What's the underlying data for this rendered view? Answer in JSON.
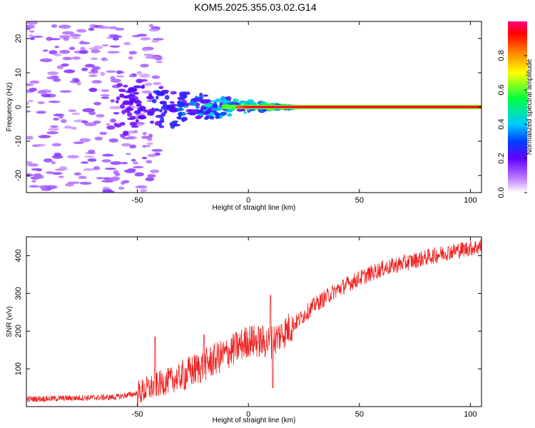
{
  "title": "KOM5.2025.355.03.02.G14",
  "colors": {
    "snr_line": "#ee2222",
    "frame": "#000000"
  },
  "chart_data": [
    {
      "type": "heatmap",
      "name": "spectrogram",
      "xlabel": "Height of straight line (km)",
      "ylabel": "Frequency (Hz)",
      "xlim": [
        -100,
        105
      ],
      "ylim": [
        -25,
        25
      ],
      "xticks": [
        -50,
        0,
        50,
        100
      ],
      "yticks": [
        -20,
        -10,
        0,
        10,
        20
      ],
      "tonal_band": {
        "frequency": 0,
        "x_start": -12,
        "x_end": 105,
        "amplitude": 0.95
      },
      "blobs": [
        {
          "x": -88,
          "f": 16,
          "amp": 0.12
        },
        {
          "x": -95,
          "f": -20,
          "amp": 0.1
        },
        {
          "x": -70,
          "f": 5,
          "amp": 0.15
        },
        {
          "x": -62,
          "f": -6,
          "amp": 0.14
        },
        {
          "x": -52,
          "f": 5,
          "amp": 0.22
        },
        {
          "x": -48,
          "f": -3,
          "amp": 0.2
        },
        {
          "x": -40,
          "f": 4,
          "amp": 0.25
        },
        {
          "x": -35,
          "f": 0,
          "amp": 0.22
        },
        {
          "x": -30,
          "f": 1,
          "amp": 0.28
        },
        {
          "x": -25,
          "f": 1,
          "amp": 0.35
        },
        {
          "x": -18,
          "f": 0.5,
          "amp": 0.45
        },
        {
          "x": -10,
          "f": 0.3,
          "amp": 0.55
        },
        {
          "x": 0,
          "f": 0,
          "amp": 0.65
        },
        {
          "x": 10,
          "f": -0.5,
          "amp": 0.6
        }
      ],
      "colorbar": {
        "label": "Normalized spectral amplitude",
        "range": [
          0,
          1
        ],
        "ticks": [
          "0.0",
          "0.2",
          "0.4",
          "0.6",
          "0.8"
        ],
        "tick_values": [
          0,
          0.2,
          0.4,
          0.6,
          0.8
        ]
      }
    },
    {
      "type": "line",
      "name": "snr",
      "xlabel": "Height of straight line (km)",
      "ylabel": "SNR (v/v)",
      "xlim": [
        -100,
        105
      ],
      "ylim": [
        0,
        450
      ],
      "xticks": [
        -50,
        0,
        50,
        100
      ],
      "yticks": [
        100,
        200,
        300,
        400
      ],
      "trend_x": [
        -100,
        -60,
        -50,
        -40,
        -30,
        -20,
        -10,
        0,
        10,
        20,
        30,
        40,
        50,
        60,
        70,
        80,
        90,
        100,
        105
      ],
      "trend_y": [
        20,
        25,
        35,
        60,
        80,
        110,
        140,
        175,
        170,
        215,
        270,
        310,
        340,
        365,
        380,
        395,
        410,
        420,
        425
      ],
      "spikes": [
        {
          "x": -42,
          "y": 185
        },
        {
          "x": -20,
          "y": 190
        },
        {
          "x": 10,
          "y": 295
        },
        {
          "x": 11,
          "y": 50
        }
      ]
    }
  ]
}
